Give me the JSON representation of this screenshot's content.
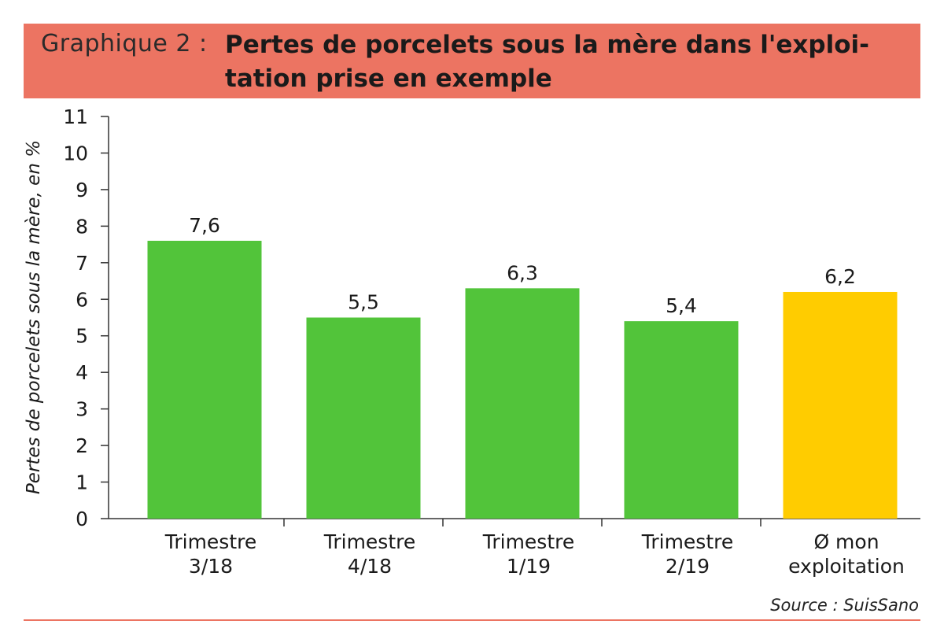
{
  "header": {
    "label": "Graphique 2 :",
    "title": "Pertes de porcelets sous la mère dans l'exploi-tation prise en exemple"
  },
  "source": "Source : SuisSano",
  "colors": {
    "banner": "#ec7462",
    "bar_green": "#52c43a",
    "bar_yellow": "#ffcc00",
    "footer_rule": "#ec7462"
  },
  "chart_data": {
    "type": "bar",
    "title": "Pertes de porcelets sous la mère dans l'exploi-tation prise en exemple",
    "ylabel": "Pertes de porcelets sous la mère, en %",
    "xlabel": "",
    "ylim": [
      0,
      11
    ],
    "yticks": [
      "0",
      "1",
      "2",
      "3",
      "4",
      "5",
      "6",
      "7",
      "8",
      "9",
      "10",
      "11"
    ],
    "grid": false,
    "categories": [
      [
        "Trimestre",
        "3/18"
      ],
      [
        "Trimestre",
        "4/18"
      ],
      [
        "Trimestre",
        "1/19"
      ],
      [
        "Trimestre",
        "2/19"
      ],
      [
        "Ø mon",
        "exploitation"
      ]
    ],
    "values": [
      7.6,
      5.5,
      6.3,
      5.4,
      6.2
    ],
    "value_labels": [
      "7,6",
      "5,5",
      "6,3",
      "5,4",
      "6,2"
    ],
    "bar_colors": [
      "#52c43a",
      "#52c43a",
      "#52c43a",
      "#52c43a",
      "#ffcc00"
    ]
  }
}
